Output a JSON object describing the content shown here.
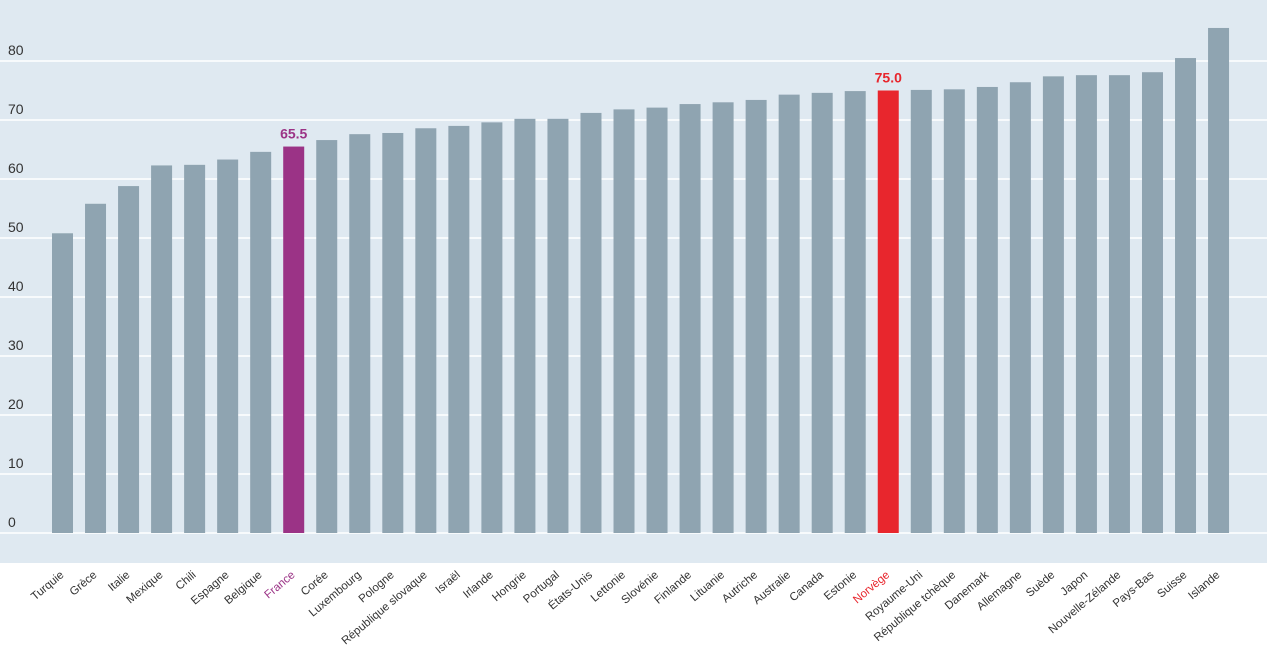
{
  "colors": {
    "plot_bg": "#dfe9f1",
    "grid": "#ffffff",
    "bar_default": "#8fa4b1",
    "highlight_france": "#9b3386",
    "highlight_norvege": "#e8262d",
    "text": "#333333"
  },
  "chart_data": {
    "type": "bar",
    "title": "",
    "xlabel": "",
    "ylabel": "",
    "ylim": [
      -5,
      90
    ],
    "yticks": [
      0,
      10,
      20,
      30,
      40,
      50,
      60,
      70,
      80
    ],
    "grid": true,
    "categories": [
      "Turquie",
      "Grèce",
      "Italie",
      "Mexique",
      "Chili",
      "Espagne",
      "Belgique",
      "France",
      "Corée",
      "Luxembourg",
      "Pologne",
      "République slovaque",
      "Israël",
      "Irlande",
      "Hongrie",
      "Portugal",
      "États-Unis",
      "Lettonie",
      "Slovénie",
      "Finlande",
      "Lituanie",
      "Autriche",
      "Australie",
      "Canada",
      "Estonie",
      "Norvège",
      "Royaume-Uni",
      "République tchèque",
      "Danemark",
      "Allemagne",
      "Suède",
      "Japon",
      "Nouvelle-Zélande",
      "Pays-Bas",
      "Suisse",
      "Islande"
    ],
    "values": [
      50.8,
      55.8,
      58.8,
      62.3,
      62.4,
      63.3,
      64.6,
      65.5,
      66.6,
      67.6,
      67.8,
      68.6,
      69.0,
      69.6,
      70.2,
      70.2,
      71.2,
      71.8,
      72.1,
      72.7,
      73.0,
      73.4,
      74.3,
      74.6,
      74.9,
      75.0,
      75.1,
      75.2,
      75.6,
      76.4,
      77.4,
      77.6,
      77.6,
      78.1,
      80.5,
      85.6
    ],
    "highlights": [
      {
        "category": "France",
        "label": "65.5",
        "color": "#9b3386"
      },
      {
        "category": "Norvège",
        "label": "75.0",
        "color": "#e8262d"
      }
    ]
  }
}
